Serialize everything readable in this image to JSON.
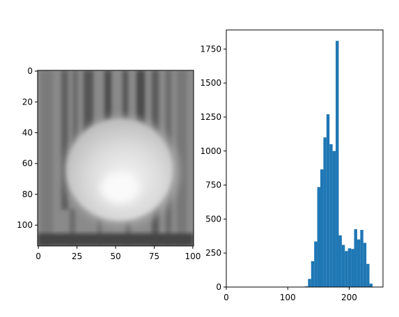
{
  "chart_data": [
    {
      "type": "image",
      "colormap": "gray",
      "x_ticks": [
        "0",
        "25",
        "50",
        "75",
        "100"
      ],
      "y_ticks": [
        "0",
        "20",
        "40",
        "60",
        "80",
        "100"
      ],
      "xlim": [
        -0.5,
        100.5
      ],
      "ylim": [
        113.5,
        -0.5
      ],
      "grid": false
    },
    {
      "type": "bar",
      "title": "",
      "xlabel": "",
      "ylabel": "",
      "xlim": [
        0,
        255
      ],
      "ylim": [
        0,
        1890
      ],
      "grid": false,
      "color": "#1f77b4",
      "x_ticks": [
        0,
        100,
        200
      ],
      "x_tick_labels": [
        "0",
        "100",
        "200"
      ],
      "y_ticks": [
        0,
        250,
        500,
        750,
        1000,
        1250,
        1500,
        1750
      ],
      "y_tick_labels": [
        "0",
        "250",
        "500",
        "750",
        "1000",
        "1250",
        "1500",
        "1750"
      ],
      "bins": [
        {
          "x0": 128,
          "x1": 133,
          "count": 5
        },
        {
          "x0": 133,
          "x1": 138,
          "count": 60
        },
        {
          "x0": 138,
          "x1": 143,
          "count": 190
        },
        {
          "x0": 143,
          "x1": 148,
          "count": 335
        },
        {
          "x0": 148,
          "x1": 153,
          "count": 735
        },
        {
          "x0": 153,
          "x1": 158,
          "count": 865
        },
        {
          "x0": 158,
          "x1": 163,
          "count": 1100
        },
        {
          "x0": 163,
          "x1": 168,
          "count": 1270
        },
        {
          "x0": 168,
          "x1": 173,
          "count": 1050
        },
        {
          "x0": 173,
          "x1": 178,
          "count": 1000
        },
        {
          "x0": 178,
          "x1": 183,
          "count": 1810
        },
        {
          "x0": 183,
          "x1": 188,
          "count": 380
        },
        {
          "x0": 188,
          "x1": 193,
          "count": 310
        },
        {
          "x0": 193,
          "x1": 198,
          "count": 265
        },
        {
          "x0": 198,
          "x1": 203,
          "count": 285
        },
        {
          "x0": 203,
          "x1": 208,
          "count": 280
        },
        {
          "x0": 208,
          "x1": 213,
          "count": 425
        },
        {
          "x0": 213,
          "x1": 218,
          "count": 350
        },
        {
          "x0": 218,
          "x1": 223,
          "count": 420
        },
        {
          "x0": 223,
          "x1": 228,
          "count": 325
        },
        {
          "x0": 228,
          "x1": 233,
          "count": 170
        },
        {
          "x0": 233,
          "x1": 238,
          "count": 25
        }
      ]
    }
  ]
}
